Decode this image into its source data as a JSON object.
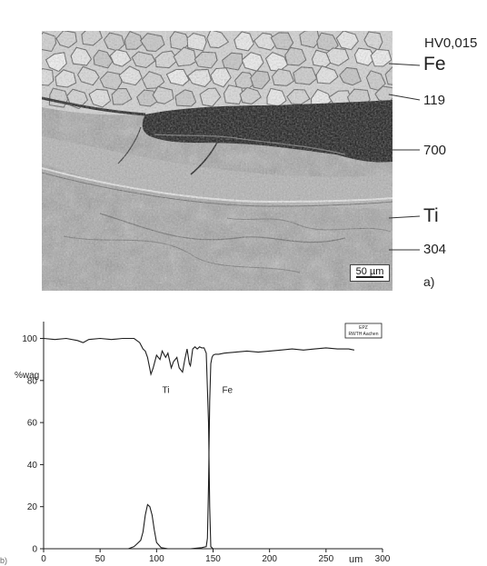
{
  "micrograph": {
    "hardness_label": "HV0,015",
    "layers": [
      {
        "label": "Fe"
      },
      {
        "label": "119"
      },
      {
        "label": "700"
      },
      {
        "label": "Ti"
      },
      {
        "label": "304"
      }
    ],
    "scale_bar": "50 µm",
    "panel_a": "a)"
  },
  "panel_b_label": "b)",
  "chart_data": {
    "type": "line",
    "ylabel": "%wag",
    "xlabel": "um",
    "xlim": [
      0,
      300
    ],
    "ylim": [
      0,
      108
    ],
    "x_ticks": [
      0,
      50,
      100,
      150,
      200,
      250,
      300
    ],
    "y_ticks": [
      0,
      20,
      40,
      60,
      80,
      100
    ],
    "inset_label": [
      "EPZ",
      "RWTH Aachen"
    ],
    "annotations": [
      {
        "text": "Ti",
        "x": 105,
        "y": 74
      },
      {
        "text": "Fe",
        "x": 158,
        "y": 74
      }
    ],
    "series": [
      {
        "name": "Ti",
        "x": [
          0,
          10,
          20,
          30,
          35,
          40,
          50,
          60,
          70,
          80,
          85,
          88,
          90,
          92,
          95,
          97,
          100,
          103,
          105,
          108,
          110,
          113,
          115,
          118,
          120,
          123,
          125,
          127,
          129,
          130,
          132,
          134,
          136,
          138,
          140,
          142,
          144,
          146,
          147,
          148,
          150,
          155,
          160,
          170,
          180,
          190,
          200,
          210,
          220,
          230,
          240,
          250,
          260,
          270,
          275
        ],
        "y": [
          100,
          99.5,
          100,
          99,
          98,
          99.5,
          100,
          99.5,
          100,
          100,
          98,
          95,
          94,
          91,
          83,
          86,
          92,
          90,
          94,
          91,
          93,
          86,
          89,
          91,
          86,
          84,
          90,
          95,
          88,
          87,
          95,
          96,
          95,
          96,
          95.5,
          95.5,
          93,
          60,
          20,
          1,
          0,
          0,
          0,
          0,
          0,
          0,
          0,
          0,
          0,
          0,
          0,
          0,
          0,
          0,
          0
        ]
      },
      {
        "name": "Fe",
        "x": [
          0,
          20,
          40,
          60,
          75,
          80,
          82,
          84,
          86,
          88,
          90,
          92,
          94,
          96,
          98,
          100,
          104,
          110,
          120,
          130,
          140,
          144,
          145,
          146,
          147,
          148,
          149,
          150,
          152,
          155,
          160,
          170,
          180,
          190,
          200,
          210,
          220,
          230,
          240,
          250,
          260,
          270,
          275
        ],
        "y": [
          0,
          0,
          0,
          0,
          0,
          1,
          2,
          3,
          4,
          8,
          16,
          21,
          20,
          16,
          9,
          3,
          0.5,
          0,
          0,
          0,
          0.5,
          1,
          5,
          30,
          70,
          88,
          91,
          92,
          92.5,
          92.5,
          93,
          93.5,
          94,
          93.5,
          94,
          94.5,
          95,
          94.5,
          95,
          95.5,
          95,
          95,
          94.5
        ]
      }
    ]
  },
  "colors": {
    "ink": "#1e1e1e",
    "micro_grain_light": "#d6d6d6",
    "micro_grain_boundary": "#5a5a5a",
    "micro_dark_band": "#161616",
    "micro_matrix": "#9e9e9e"
  }
}
